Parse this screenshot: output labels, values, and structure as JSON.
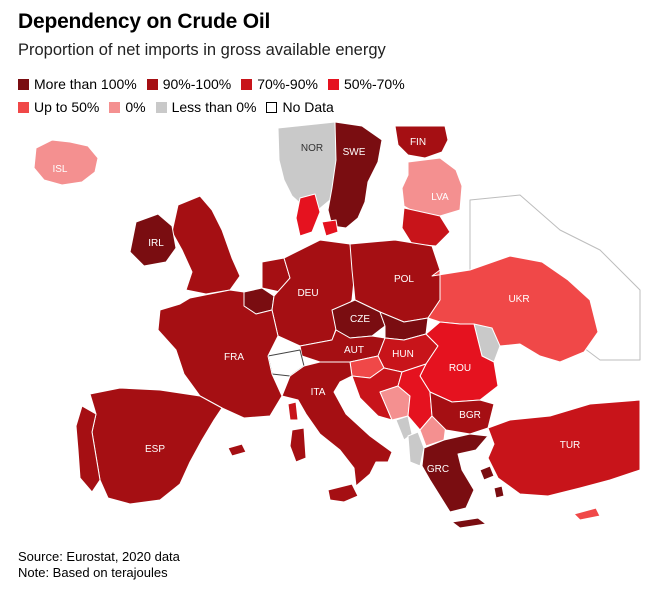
{
  "title": "Dependency on Crude Oil",
  "subtitle": "Proportion of net imports in gross available energy",
  "legend": [
    {
      "label": "More than 100%",
      "color": "#7a0d11"
    },
    {
      "label": "90%-100%",
      "color": "#a50f13"
    },
    {
      "label": "70%-90%",
      "color": "#c8141a"
    },
    {
      "label": "50%-70%",
      "color": "#e5121f"
    },
    {
      "label": "Up to 50%",
      "color": "#f04848"
    },
    {
      "label": "0%",
      "color": "#f49090"
    },
    {
      "label": "Less than 0%",
      "color": "#c9c9c9"
    },
    {
      "label": "No Data",
      "color": "#ffffff"
    }
  ],
  "countries": [
    {
      "code": "ISL",
      "category": "0%"
    },
    {
      "code": "NOR",
      "category": "Less than 0%"
    },
    {
      "code": "SWE",
      "category": "More than 100%"
    },
    {
      "code": "FIN",
      "category": "90%-100%"
    },
    {
      "code": "LVA",
      "category": "0%"
    },
    {
      "code": "IRL",
      "category": "More than 100%"
    },
    {
      "code": "DEU",
      "category": "90%-100%"
    },
    {
      "code": "POL",
      "category": "90%-100%"
    },
    {
      "code": "UKR",
      "category": "Up to 50%"
    },
    {
      "code": "CZE",
      "category": "More than 100%"
    },
    {
      "code": "FRA",
      "category": "90%-100%"
    },
    {
      "code": "AUT",
      "category": "90%-100%"
    },
    {
      "code": "HUN",
      "category": "70%-90%"
    },
    {
      "code": "ROU",
      "category": "50%-70%"
    },
    {
      "code": "ITA",
      "category": "90%-100%"
    },
    {
      "code": "BGR",
      "category": "90%-100%"
    },
    {
      "code": "ESP",
      "category": "90%-100%"
    },
    {
      "code": "TUR",
      "category": "70%-90%"
    },
    {
      "code": "GRC",
      "category": "More than 100%"
    }
  ],
  "footer": {
    "source": "Source: Eurostat, 2020 data",
    "note": "Note: Based on terajoules"
  }
}
